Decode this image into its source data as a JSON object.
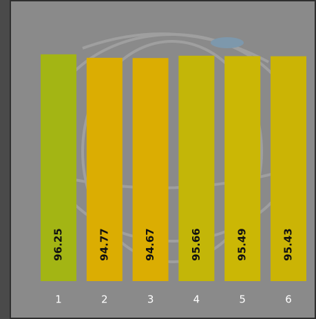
{
  "chart_data": {
    "type": "bar",
    "categories": [
      "1",
      "2",
      "3",
      "4",
      "5",
      "6"
    ],
    "values": [
      96.25,
      94.77,
      94.67,
      95.66,
      95.49,
      95.43
    ],
    "colors": [
      "#a3b514",
      "#dbad02",
      "#dbad02",
      "#c3b608",
      "#cbb705",
      "#cbb405"
    ],
    "ylim": [
      0,
      100
    ]
  }
}
